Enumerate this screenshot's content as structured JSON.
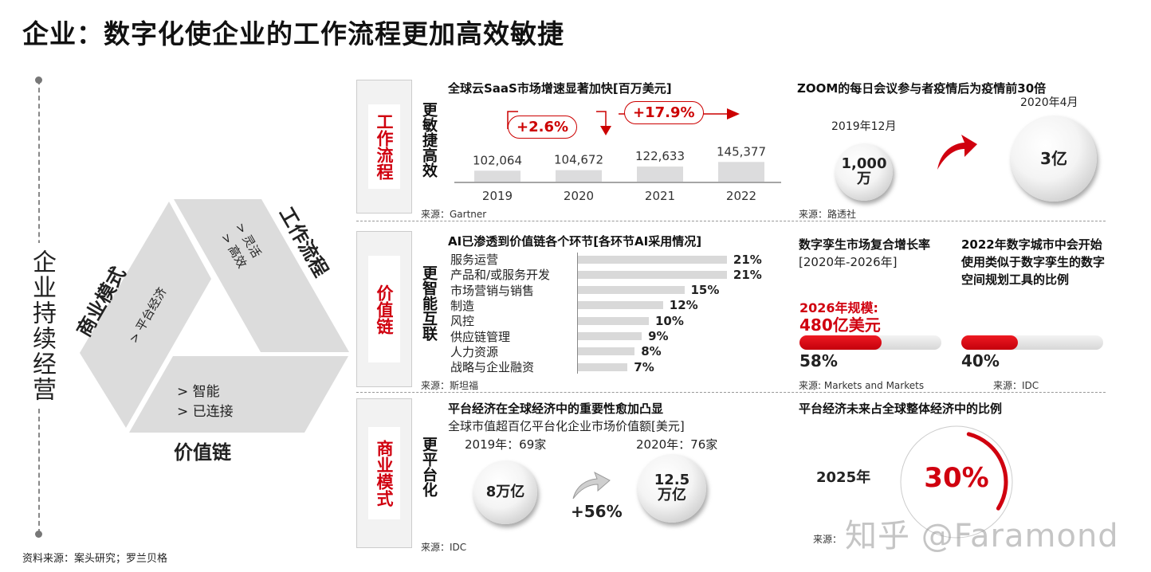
{
  "title": "企业：数字化使企业的工作流程更加高效敏捷",
  "left_label": "企业持续经营",
  "triangle": {
    "business_model": {
      "label": "商业模式",
      "items": [
        "> 平台经济"
      ]
    },
    "workflow": {
      "label": "工作流程",
      "items": [
        "> 灵活",
        "> 高效"
      ]
    },
    "value_chain": {
      "label": "价值链",
      "items": [
        "> 智能",
        "> 已连接"
      ]
    }
  },
  "footer_source": "资料来源：案头研究；罗兰贝格",
  "rows": [
    {
      "tab": "工作流程",
      "side": "更敏捷高效"
    },
    {
      "tab": "价值链",
      "side": "更智能互联"
    },
    {
      "tab": "商业模式",
      "side": "更平台化"
    }
  ],
  "saas": {
    "title": "全球云SaaS市场增速显著加快[百万美元]",
    "growth_1": "+2.6%",
    "growth_2": "+17.9%",
    "source": "来源：Gartner",
    "value_labels": [
      "102,064",
      "104,672",
      "122,633",
      "145,377"
    ]
  },
  "zoom": {
    "title": "ZOOM的每日会议参与者疫情后为疫情前30倍",
    "date_before": "2019年12月",
    "value_before_1": "1,000",
    "value_before_2": "万",
    "date_after": "2020年4月",
    "value_after": "3亿",
    "source": "来源：路透社"
  },
  "ai": {
    "title": "AI已渗透到价值链各个环节[各环节AI采用情况]",
    "source": "来源：斯坦福"
  },
  "twin": {
    "title": "数字孪生市场复合增长率",
    "subtitle": "[2020年-2026年]",
    "scale_label": "2026年规模:",
    "scale_value": "480亿美元",
    "percent": 58,
    "percent_label": "58%",
    "source": "来源: Markets and Markets"
  },
  "city": {
    "title": "2022年数字城市中会开始使用类似于数字孪生的数字空间规划工具的比例",
    "percent": 40,
    "percent_label": "40%",
    "source": "来源：IDC"
  },
  "platform": {
    "title": "平台经济在全球经济中的重要性愈加凸显",
    "subtitle": "全球市值超百亿平台化企业市场价值额[美元]",
    "year1": "2019年：69家",
    "value1": "8万亿",
    "year2": "2020年：76家",
    "value2_1": "12.5",
    "value2_2": "万亿",
    "growth": "+56%",
    "source": "来源：IDC"
  },
  "share": {
    "title": "平台经济未来占全球整体经济中的比例",
    "year": "2025年",
    "percent": 30,
    "percent_label": "30%",
    "source": "来源："
  },
  "watermark": "知乎 @Faramond",
  "colors": {
    "accent": "#d0000f",
    "bar": "#d9d9d9",
    "panel": "#f2f2f2"
  },
  "chart_data": [
    {
      "type": "bar",
      "title": "全球云SaaS市场增速显著加快[百万美元]",
      "categories": [
        "2019",
        "2020",
        "2021",
        "2022"
      ],
      "values": [
        102064,
        104672,
        122633,
        145377
      ],
      "xlabel": "",
      "ylabel": "百万美元"
    },
    {
      "type": "bar",
      "orientation": "horizontal",
      "title": "AI已渗透到价值链各个环节[各环节AI采用情况]",
      "categories": [
        "服务运营",
        "产品和/或服务开发",
        "市场营销与销售",
        "制造",
        "风控",
        "供应链管理",
        "人力资源",
        "战略与企业融资"
      ],
      "values": [
        21,
        21,
        15,
        12,
        10,
        9,
        8,
        7
      ],
      "value_labels": [
        "21%",
        "21%",
        "15%",
        "12%",
        "10%",
        "9%",
        "8%",
        "7%"
      ],
      "unit": "%"
    }
  ]
}
